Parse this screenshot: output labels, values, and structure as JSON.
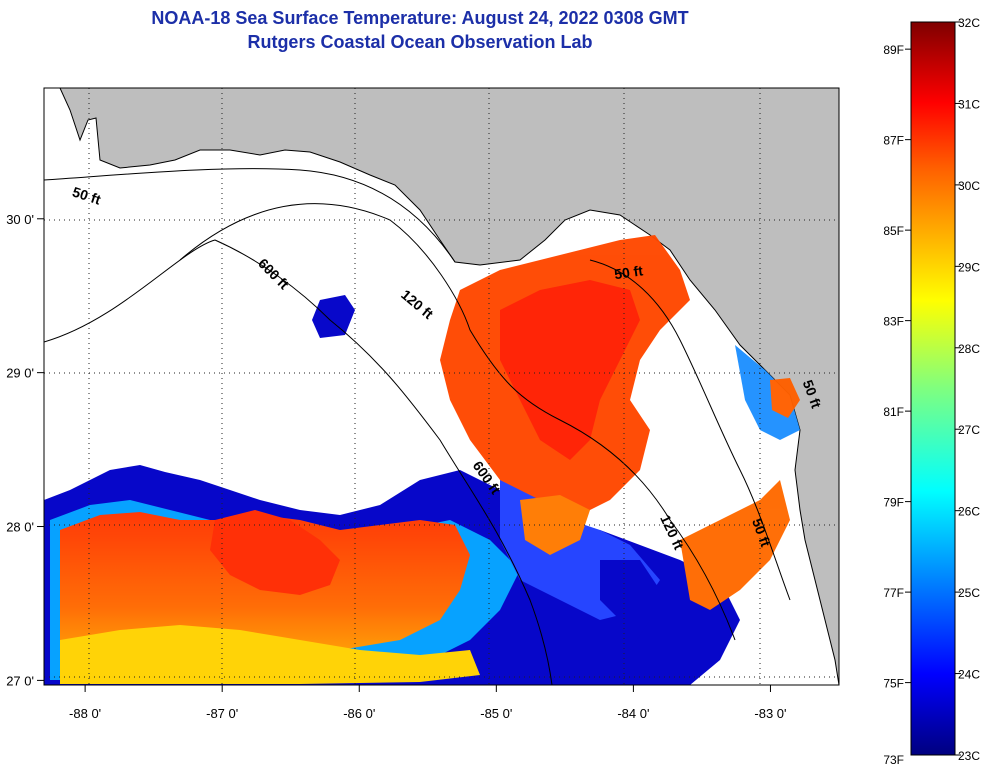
{
  "title": "NOAA-18 Sea Surface Temperature:  August 24, 2022 0308 GMT",
  "subtitle": "Rutgers Coastal Ocean Observation Lab",
  "map": {
    "lon_range": [
      -88.3,
      -82.5
    ],
    "lat_range": [
      26.97,
      30.85
    ],
    "lon_ticks": [
      "-88 0'",
      "-87 0'",
      "-86 0'",
      "-85 0'",
      "-84 0'",
      "-83 0'"
    ],
    "lat_ticks": [
      "30 0'",
      "29 0'",
      "28 0'",
      "27 0'"
    ],
    "land_color": "#bebebe",
    "ocean_color": "#ffffff",
    "grid": "dotted",
    "contour_labels": [
      {
        "text": "50 ft",
        "lon": -88.0,
        "lat": 30.12,
        "angle": 18
      },
      {
        "text": "600 ft",
        "lon": -86.65,
        "lat": 29.62,
        "angle": 45
      },
      {
        "text": "120 ft",
        "lon": -85.6,
        "lat": 29.42,
        "angle": 40
      },
      {
        "text": "50 ft",
        "lon": -84.03,
        "lat": 29.62,
        "angle": -8
      },
      {
        "text": "600 ft",
        "lon": -85.1,
        "lat": 28.3,
        "angle": 55
      },
      {
        "text": "50 ft",
        "lon": -82.73,
        "lat": 28.85,
        "angle": 70
      },
      {
        "text": "120 ft",
        "lon": -83.75,
        "lat": 27.95,
        "angle": 65
      },
      {
        "text": "50 ft",
        "lon": -83.1,
        "lat": 27.95,
        "angle": 70
      }
    ]
  },
  "colorbar": {
    "f_labels": [
      "89F",
      "87F",
      "85F",
      "83F",
      "81F",
      "79F",
      "77F",
      "75F",
      "73F"
    ],
    "c_labels": [
      "32C",
      "31C",
      "30C",
      "29C",
      "28C",
      "27C",
      "26C",
      "25C",
      "24C",
      "23C"
    ],
    "c_min": 23,
    "c_max": 32,
    "colors": [
      "#00007f",
      "#0000ff",
      "#007fff",
      "#00ffff",
      "#7fff7f",
      "#ffff00",
      "#ff7f00",
      "#ff0000",
      "#7f0000"
    ]
  }
}
